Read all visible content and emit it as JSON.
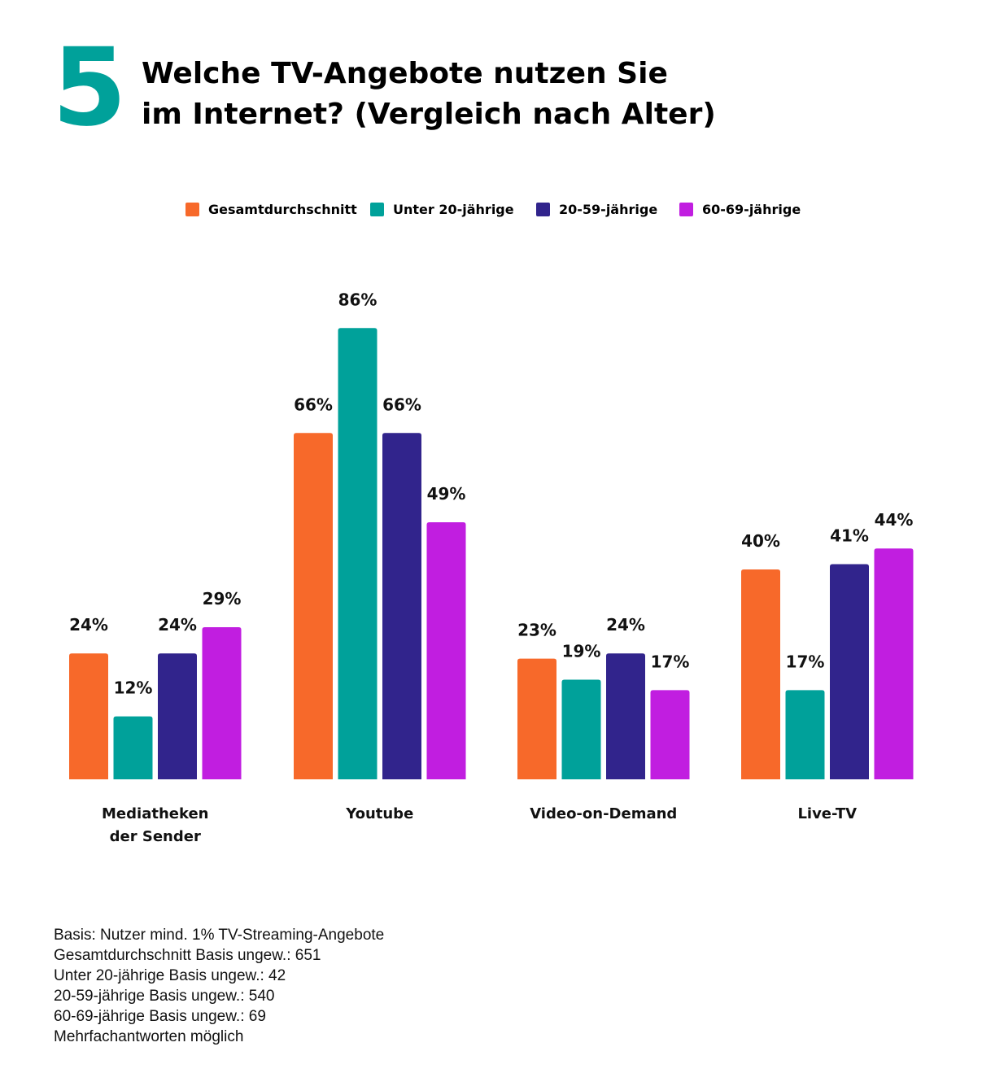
{
  "header": {
    "number": "5",
    "title_line1": "Welche TV-Angebote nutzen Sie",
    "title_line2": "im Internet? (Vergleich nach Alter)"
  },
  "chart_data": {
    "type": "bar",
    "categories": [
      [
        "Mediatheken",
        "der Sender"
      ],
      [
        "Youtube"
      ],
      [
        "Video-on-Demand"
      ],
      [
        "Live-TV"
      ]
    ],
    "series": [
      {
        "name": "Gesamtdurchschnitt",
        "color": "#f7692a",
        "values": [
          24,
          66,
          23,
          40
        ]
      },
      {
        "name": "Unter 20-jährige",
        "color": "#00a19a",
        "values": [
          12,
          86,
          19,
          17
        ]
      },
      {
        "name": "20-59-jährige",
        "color": "#31248c",
        "values": [
          24,
          66,
          24,
          41
        ]
      },
      {
        "name": "60-69-jährige",
        "color": "#c11ee0",
        "values": [
          29,
          49,
          17,
          44
        ]
      }
    ],
    "value_suffix": "%",
    "ylim": [
      0,
      100
    ],
    "grid": false,
    "legend_position": "top"
  },
  "footer": {
    "lines": [
      "Basis: Nutzer mind. 1% TV-Streaming-Angebote",
      "Gesamtdurchschnitt Basis ungew.: 651",
      "Unter 20-jährige Basis ungew.: 42",
      "20-59-jährige Basis ungew.: 540",
      "60-69-jährige Basis ungew.: 69",
      "Mehrfachantworten möglich"
    ]
  }
}
